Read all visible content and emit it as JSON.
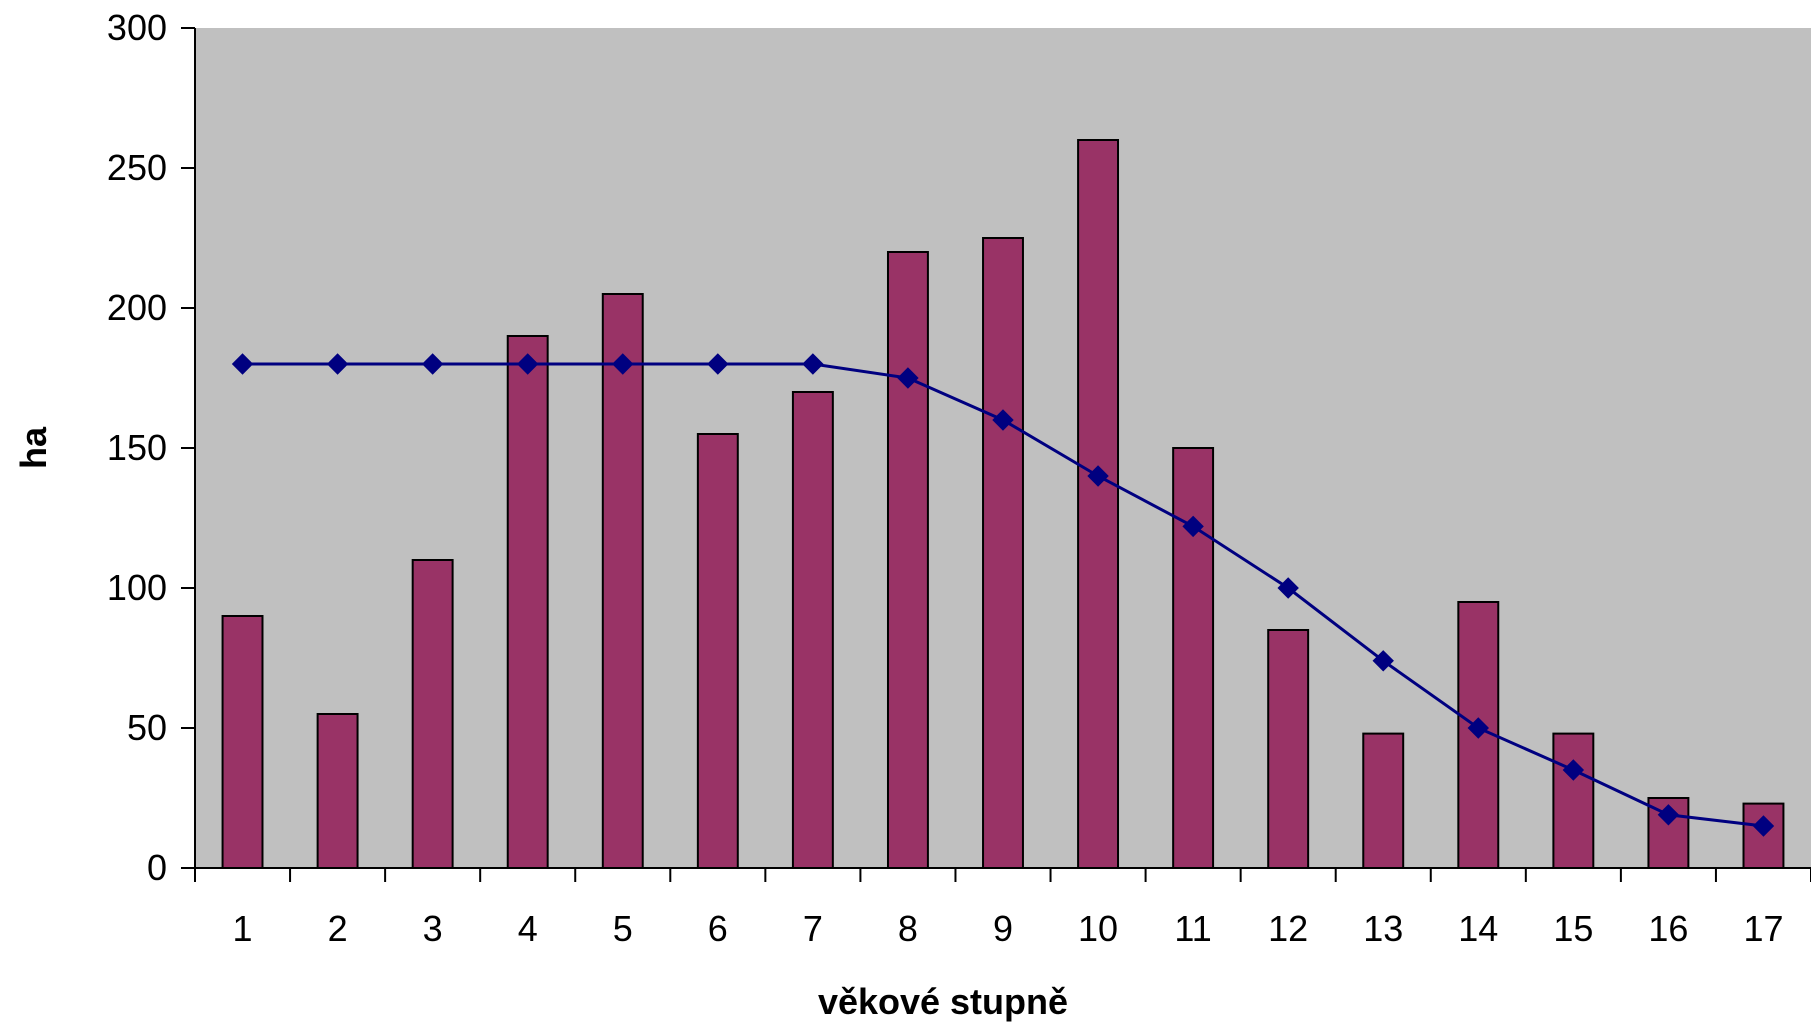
{
  "chart_data": {
    "type": "bar",
    "title": "",
    "xlabel": "věkové stupně",
    "ylabel": "ha",
    "categories": [
      "1",
      "2",
      "3",
      "4",
      "5",
      "6",
      "7",
      "8",
      "9",
      "10",
      "11",
      "12",
      "13",
      "14",
      "15",
      "16",
      "17"
    ],
    "ylim": [
      0,
      300
    ],
    "yticks": [
      0,
      50,
      100,
      150,
      200,
      250,
      300
    ],
    "grid": false,
    "legend": "none",
    "series": [
      {
        "kind": "bar",
        "color": "#993366",
        "values": [
          90,
          55,
          110,
          190,
          205,
          155,
          170,
          220,
          225,
          260,
          150,
          85,
          48,
          95,
          48,
          25,
          23
        ]
      },
      {
        "kind": "line",
        "marker": "diamond",
        "color": "#000080",
        "values": [
          180,
          180,
          180,
          180,
          180,
          180,
          180,
          175,
          160,
          140,
          122,
          100,
          74,
          50,
          35,
          19,
          15
        ]
      }
    ],
    "colors": {
      "plot_background": "#C0C0C0",
      "axis": "#000000"
    }
  }
}
